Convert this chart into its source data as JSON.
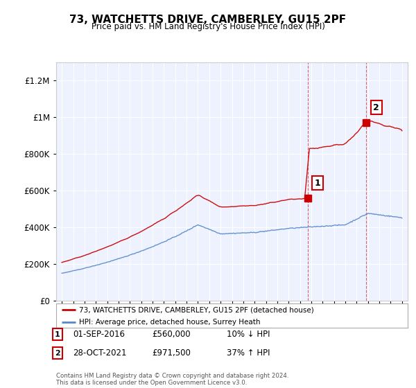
{
  "title": "73, WATCHETTS DRIVE, CAMBERLEY, GU15 2PF",
  "subtitle": "Price paid vs. HM Land Registry's House Price Index (HPI)",
  "sale1_date": "01-SEP-2016",
  "sale1_price": 560000,
  "sale1_year": 2016.67,
  "sale2_date": "28-OCT-2021",
  "sale2_price": 971500,
  "sale2_year": 2021.83,
  "sale1_hpi_diff": "10% ↓ HPI",
  "sale2_hpi_diff": "37% ↑ HPI",
  "legend_red": "73, WATCHETTS DRIVE, CAMBERLEY, GU15 2PF (detached house)",
  "legend_blue": "HPI: Average price, detached house, Surrey Heath",
  "footer": "Contains HM Land Registry data © Crown copyright and database right 2024.\nThis data is licensed under the Open Government Licence v3.0.",
  "red_color": "#cc0000",
  "blue_color": "#5588cc",
  "background_color": "#ffffff",
  "plot_bg_color": "#eef2ff",
  "grid_color": "#ffffff",
  "ylim_min": 0,
  "ylim_max": 1300000,
  "start_year": 1995,
  "end_year": 2025
}
